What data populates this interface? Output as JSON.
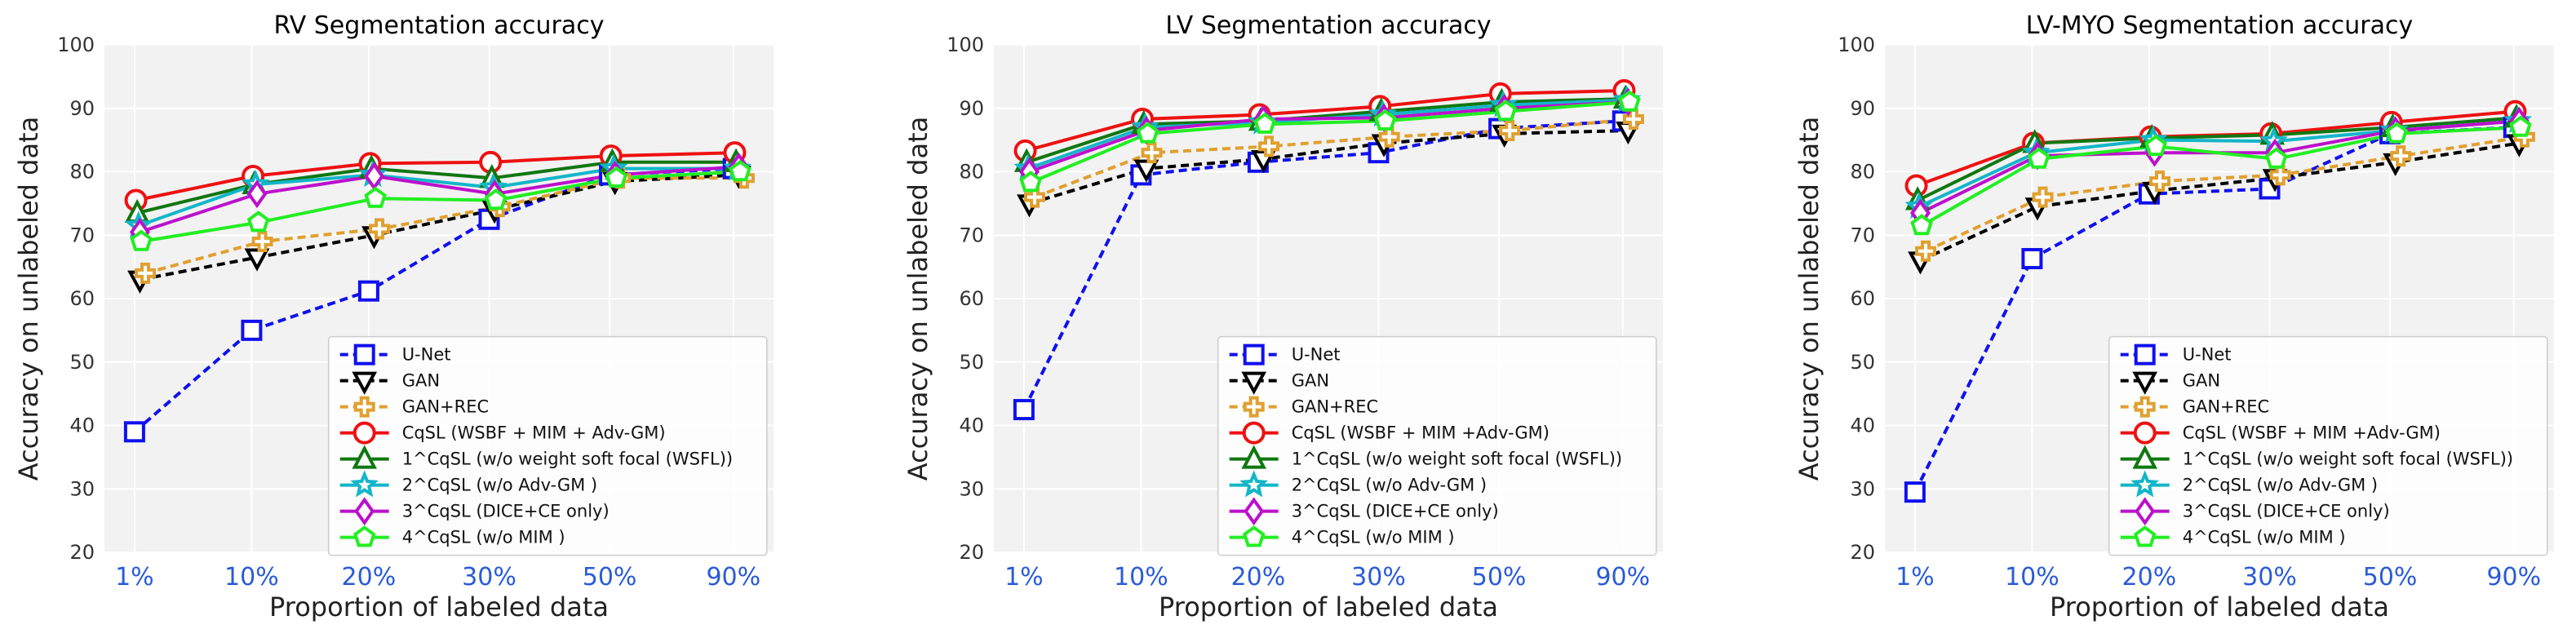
{
  "chart_data": [
    {
      "type": "line",
      "title": "RV Segmentation accuracy",
      "xlabel": "Proportion of labeled data",
      "ylabel": "Accuracy on unlabeled data",
      "categories": [
        "1%",
        "10%",
        "20%",
        "30%",
        "50%",
        "90%"
      ],
      "yticks": [
        20,
        30,
        40,
        50,
        60,
        70,
        80,
        90,
        100
      ],
      "ylim": [
        20,
        100
      ],
      "grid": true,
      "legend_position": "lower-right",
      "series": [
        {
          "name": "U-Net",
          "values": [
            39,
            55,
            61.2,
            72.5,
            79.5,
            80.5
          ]
        },
        {
          "name": "GAN",
          "values": [
            63,
            66.5,
            70,
            74,
            78.5,
            79.5
          ]
        },
        {
          "name": "GAN+REC",
          "values": [
            64,
            69,
            71,
            74.5,
            79,
            79
          ]
        },
        {
          "name": "CqSL (WSBF + MIM + Adv-GM)",
          "values": [
            75.5,
            79.3,
            81.3,
            81.5,
            82.5,
            83
          ]
        },
        {
          "name": "1^CqSL (w/o weight soft focal (WSFL))",
          "values": [
            73.5,
            78,
            80.5,
            79,
            81.5,
            81.5
          ]
        },
        {
          "name": "2^CqSL (w/o Adv-GM )",
          "values": [
            71.5,
            78,
            79.5,
            77.5,
            80.5,
            80.5
          ]
        },
        {
          "name": "3^CqSL (DICE+CE only)",
          "values": [
            70.5,
            76.5,
            79.3,
            76.5,
            79.5,
            80.8
          ]
        },
        {
          "name": "4^CqSL (w/o MIM )",
          "values": [
            69,
            72,
            75.8,
            75.5,
            79,
            80
          ]
        }
      ]
    },
    {
      "type": "line",
      "title": "LV Segmentation accuracy",
      "xlabel": "Proportion of labeled data",
      "ylabel": "Accuracy on unlabeled data",
      "categories": [
        "1%",
        "10%",
        "20%",
        "30%",
        "50%",
        "90%"
      ],
      "yticks": [
        20,
        30,
        40,
        50,
        60,
        70,
        80,
        90,
        100
      ],
      "ylim": [
        20,
        100
      ],
      "grid": true,
      "legend_position": "lower-right",
      "series": [
        {
          "name": "U-Net",
          "values": [
            42.5,
            79.5,
            81.5,
            83,
            86.8,
            88
          ]
        },
        {
          "name": "GAN",
          "values": [
            75,
            80.5,
            82,
            84.5,
            86,
            86.5
          ]
        },
        {
          "name": "GAN+REC",
          "values": [
            76,
            83,
            84,
            85.5,
            86.5,
            88.3
          ]
        },
        {
          "name": "CqSL (WSBF + MIM +Adv-GM)",
          "values": [
            83.3,
            88.3,
            89,
            90.3,
            92.3,
            92.8
          ]
        },
        {
          "name": "1^CqSL (w/o weight soft focal (WSFL))",
          "values": [
            81.5,
            87.5,
            88,
            89.5,
            91,
            91.5
          ]
        },
        {
          "name": "2^CqSL (w/o Adv-GM )",
          "values": [
            80.5,
            87,
            87.8,
            89,
            90.5,
            91.3
          ]
        },
        {
          "name": "3^CqSL (DICE+CE only)",
          "values": [
            80,
            86.5,
            88.3,
            88.5,
            90,
            91
          ]
        },
        {
          "name": "4^CqSL (w/o MIM )",
          "values": [
            78.3,
            86,
            87.5,
            88,
            89.5,
            91
          ]
        }
      ]
    },
    {
      "type": "line",
      "title": "LV-MYO Segmentation accuracy",
      "xlabel": "Proportion of labeled data",
      "ylabel": "Accuracy on unlabeled data",
      "categories": [
        "1%",
        "10%",
        "20%",
        "30%",
        "50%",
        "90%"
      ],
      "yticks": [
        20,
        30,
        40,
        50,
        60,
        70,
        80,
        90,
        100
      ],
      "ylim": [
        20,
        100
      ],
      "grid": true,
      "legend_position": "lower-right",
      "series": [
        {
          "name": "U-Net",
          "values": [
            29.5,
            66.3,
            76.5,
            77.3,
            86,
            87
          ]
        },
        {
          "name": "GAN",
          "values": [
            66,
            74.5,
            77,
            79,
            81.5,
            84.5
          ]
        },
        {
          "name": "GAN+REC",
          "values": [
            67.5,
            76,
            78.5,
            79.5,
            82.5,
            85.5
          ]
        },
        {
          "name": "CqSL (WSBF + MIM +Adv-GM)",
          "values": [
            77.8,
            84.5,
            85.5,
            86,
            87.8,
            89.5
          ]
        },
        {
          "name": "1^CqSL (w/o weight soft focal (WSFL))",
          "values": [
            75.5,
            84.5,
            85.3,
            85.8,
            87,
            88.5
          ]
        },
        {
          "name": "2^CqSL (w/o Adv-GM )",
          "values": [
            74.5,
            83,
            85,
            84.8,
            86.5,
            88
          ]
        },
        {
          "name": "3^CqSL (DICE+CE only)",
          "values": [
            73.5,
            82.5,
            83,
            83,
            86.5,
            88
          ]
        },
        {
          "name": "4^CqSL (w/o MIM )",
          "values": [
            71.5,
            82,
            84,
            82,
            86,
            87
          ]
        }
      ]
    }
  ],
  "styles": [
    {
      "color": "#1010ee",
      "marker": "square",
      "dash": "dashed"
    },
    {
      "color": "#000000",
      "marker": "triangle-down",
      "dash": "dashed"
    },
    {
      "color": "#e0a030",
      "marker": "plus",
      "dash": "dashed"
    },
    {
      "color": "#ee1111",
      "marker": "circle",
      "dash": "solid"
    },
    {
      "color": "#117711",
      "marker": "triangle-up",
      "dash": "solid"
    },
    {
      "color": "#13b6c8",
      "marker": "star",
      "dash": "solid"
    },
    {
      "color": "#bb11cc",
      "marker": "diamond",
      "dash": "solid"
    },
    {
      "color": "#22ee22",
      "marker": "pentagon",
      "dash": "solid"
    }
  ]
}
